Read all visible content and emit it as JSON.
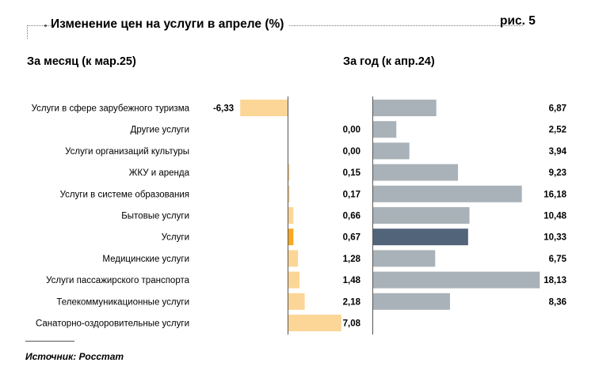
{
  "header": {
    "title": "Изменение цен на услуги в апреле (%)",
    "figure_label": "рис. 5",
    "source": "Источник: Росстат"
  },
  "colors": {
    "month_bar": "#fcd696",
    "month_highlight": "#f7a823",
    "year_bar": "#a9b2b8",
    "year_highlight": "#526479",
    "axis": "#555555"
  },
  "chart_data": [
    {
      "type": "bar",
      "orientation": "horizontal",
      "title": "За месяц (к мар.25)",
      "categories": [
        "Услуги в сфере зарубежного туризма",
        "Другие услуги",
        "Услуги организаций культуры",
        "ЖКУ и аренда",
        "Услуги в системе образования",
        "Бытовые услуги",
        "Услуги",
        "Медицинские услуги",
        "Услуги пассажирского транспорта",
        "Телекоммуникационные услуги",
        "Санаторно-оздоровительные услуги"
      ],
      "values": [
        -6.33,
        0.0,
        0.0,
        0.15,
        0.17,
        0.66,
        0.67,
        1.28,
        1.48,
        2.18,
        7.08
      ],
      "labels": [
        "-6,33",
        "0,00",
        "0,00",
        "0,15",
        "0,17",
        "0,66",
        "0,67",
        "1,28",
        "1,48",
        "2,18",
        "7,08"
      ],
      "highlight": "Услуги",
      "xlim": [
        -7,
        7.5
      ]
    },
    {
      "type": "bar",
      "orientation": "horizontal",
      "title": "За год (к апр.24)",
      "categories": [
        "Услуги в сфере зарубежного туризма",
        "Другие услуги",
        "Услуги организаций культуры",
        "ЖКУ и аренда",
        "Услуги в системе образования",
        "Бытовые услуги",
        "Услуги",
        "Медицинские услуги",
        "Услуги пассажирского транспорта",
        "Телекоммуникационные услуги",
        "Санаторно-оздоровительные услуги"
      ],
      "values": [
        6.87,
        2.52,
        3.94,
        9.23,
        16.18,
        10.48,
        10.33,
        6.75,
        18.13,
        8.36,
        null
      ],
      "labels": [
        "6,87",
        "2,52",
        "3,94",
        "9,23",
        "16,18",
        "10,48",
        "10,33",
        "6,75",
        "18,13",
        "8,36",
        ""
      ],
      "highlight": "Услуги",
      "xlim": [
        0,
        18.2
      ]
    }
  ]
}
